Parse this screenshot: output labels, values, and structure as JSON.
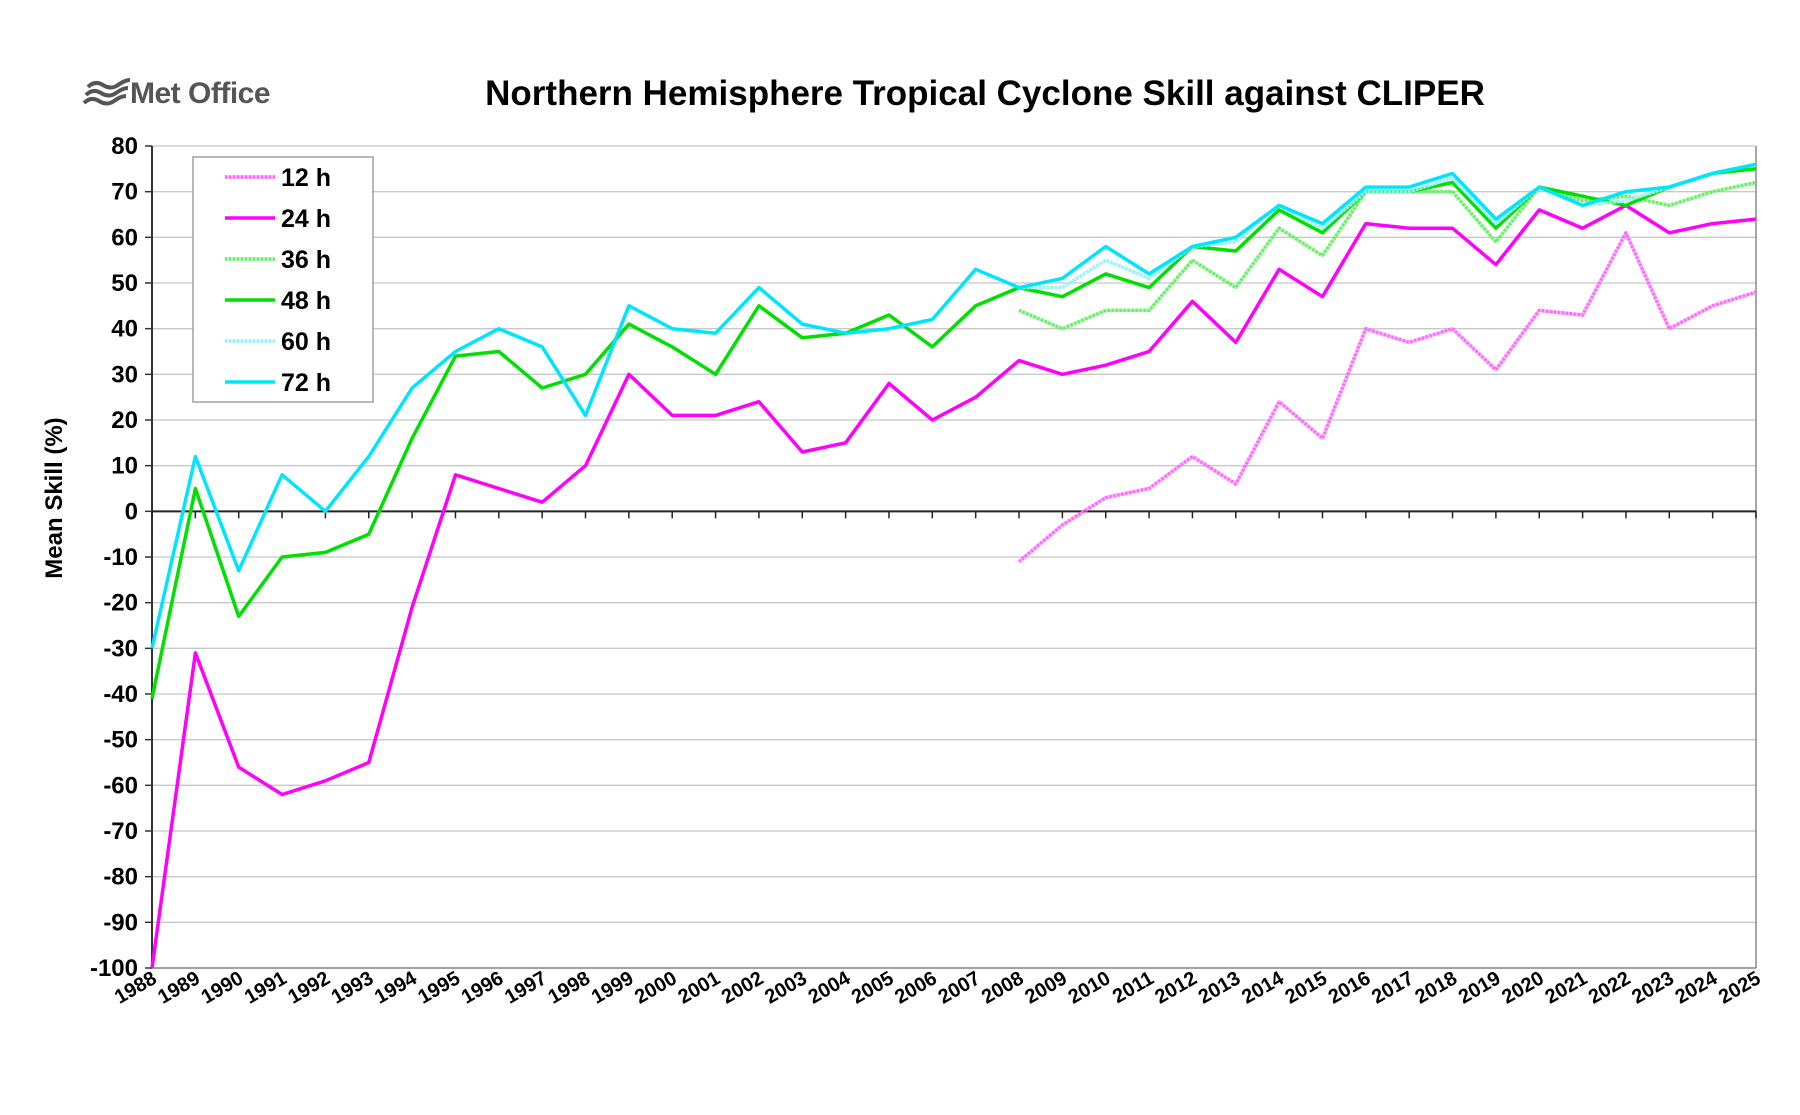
{
  "logo": {
    "text": "Met Office",
    "icon": "met-office-wave-icon"
  },
  "chart_data": {
    "type": "line",
    "title": "Northern Hemisphere Tropical Cyclone Skill against CLIPER",
    "xlabel": "",
    "ylabel": "Mean Skill (%)",
    "ylim": [
      -100,
      80
    ],
    "yticks": [
      80,
      70,
      60,
      50,
      40,
      30,
      20,
      10,
      0,
      -10,
      -20,
      -30,
      -40,
      -50,
      -60,
      -70,
      -80,
      -90,
      -100
    ],
    "grid": true,
    "legend_position": "top-left",
    "x": [
      "1988",
      "1989",
      "1990",
      "1991",
      "1992",
      "1993",
      "1994",
      "1995",
      "1996",
      "1997",
      "1998",
      "1999",
      "2000",
      "2001",
      "2002",
      "2003",
      "2004",
      "2005",
      "2006",
      "2007",
      "2008",
      "2009",
      "2010",
      "2011",
      "2012",
      "2013",
      "2014",
      "2015",
      "2016",
      "2017",
      "2018",
      "2019",
      "2020",
      "2021",
      "2022",
      "2023",
      "2024",
      "2025"
    ],
    "series": [
      {
        "name": "12 h",
        "color": "#ff66ff",
        "style": "dotted",
        "values": [
          null,
          null,
          null,
          null,
          null,
          null,
          null,
          null,
          null,
          null,
          null,
          null,
          null,
          null,
          null,
          null,
          null,
          null,
          null,
          null,
          -11,
          -3,
          3,
          5,
          12,
          6,
          24,
          16,
          40,
          37,
          40,
          31,
          44,
          43,
          61,
          40,
          45,
          48
        ]
      },
      {
        "name": "24 h",
        "color": "#ff00ff",
        "style": "solid",
        "values": [
          -100,
          -31,
          -56,
          -62,
          -59,
          -55,
          -21,
          8,
          5,
          2,
          10,
          30,
          21,
          21,
          24,
          13,
          15,
          28,
          20,
          25,
          33,
          30,
          32,
          35,
          46,
          37,
          53,
          47,
          63,
          62,
          62,
          54,
          66,
          62,
          67,
          61,
          63,
          64
        ]
      },
      {
        "name": "36 h",
        "color": "#66ee66",
        "style": "dotted",
        "values": [
          null,
          null,
          null,
          null,
          null,
          null,
          null,
          null,
          null,
          null,
          null,
          null,
          null,
          null,
          null,
          null,
          null,
          null,
          null,
          null,
          44,
          40,
          44,
          44,
          55,
          49,
          62,
          56,
          70,
          70,
          70,
          59,
          71,
          68,
          69,
          67,
          70,
          72
        ]
      },
      {
        "name": "48 h",
        "color": "#00e000",
        "style": "solid",
        "values": [
          -41,
          5,
          -23,
          -10,
          -9,
          -5,
          16,
          34,
          35,
          27,
          30,
          41,
          36,
          30,
          45,
          38,
          39,
          43,
          36,
          45,
          49,
          47,
          52,
          49,
          58,
          57,
          66,
          61,
          70,
          70,
          72,
          62,
          71,
          69,
          67,
          71,
          74,
          75
        ]
      },
      {
        "name": "60 h",
        "color": "#99f0ff",
        "style": "dotted",
        "values": [
          null,
          null,
          null,
          null,
          null,
          null,
          null,
          null,
          null,
          null,
          null,
          null,
          null,
          null,
          null,
          null,
          null,
          null,
          null,
          null,
          49,
          49,
          55,
          51,
          58,
          59,
          67,
          62,
          70,
          70,
          73,
          63,
          71,
          67,
          68,
          71,
          74,
          76
        ]
      },
      {
        "name": "72 h",
        "color": "#00e5ff",
        "style": "solid",
        "values": [
          -30,
          12,
          -13,
          8,
          0,
          12,
          27,
          35,
          40,
          36,
          21,
          45,
          40,
          39,
          49,
          41,
          39,
          40,
          42,
          53,
          49,
          51,
          58,
          52,
          58,
          60,
          67,
          63,
          71,
          71,
          74,
          64,
          71,
          67,
          70,
          71,
          74,
          76
        ]
      }
    ]
  }
}
